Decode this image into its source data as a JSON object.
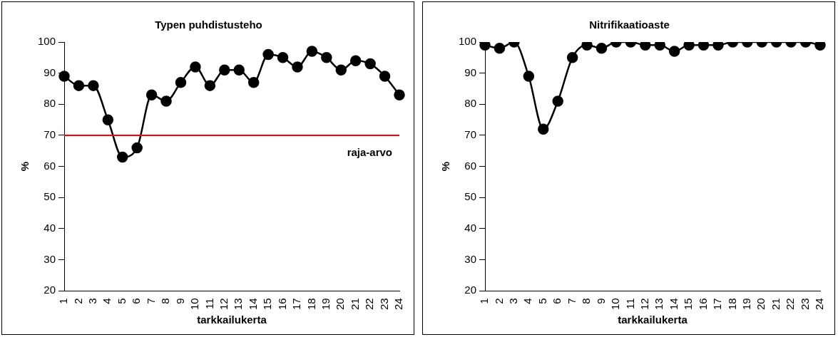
{
  "chart_data": [
    {
      "type": "line",
      "title": "Typen puhdistusteho",
      "xlabel": "tarkkailukerta",
      "ylabel": "%",
      "categories": [
        "1",
        "2",
        "3",
        "4",
        "5",
        "6",
        "7",
        "8",
        "9",
        "10",
        "11",
        "12",
        "13",
        "14",
        "15",
        "16",
        "17",
        "18",
        "19",
        "20",
        "21",
        "22",
        "23",
        "24"
      ],
      "series": [
        {
          "color": "#000000",
          "values": [
            89,
            86,
            86,
            75,
            63,
            66,
            83,
            81,
            87,
            92,
            86,
            91,
            91,
            87,
            96,
            95,
            92,
            97,
            95,
            91,
            94,
            93,
            89,
            83
          ]
        }
      ],
      "ylim": [
        20,
        100
      ],
      "yticks": [
        20,
        30,
        40,
        50,
        60,
        70,
        80,
        90,
        100
      ],
      "grid": false,
      "legend": false,
      "marker": "circle",
      "line_style": "solid",
      "ref_lines": [
        {
          "axis": "y",
          "value": 70,
          "label": "raja-arvo",
          "color": "#ff0000"
        }
      ]
    },
    {
      "type": "line",
      "title": "Nitrifikaatioaste",
      "xlabel": "tarkkailukerta",
      "ylabel": "%",
      "categories": [
        "1",
        "2",
        "3",
        "4",
        "5",
        "6",
        "7",
        "8",
        "9",
        "10",
        "11",
        "12",
        "13",
        "14",
        "15",
        "16",
        "17",
        "18",
        "19",
        "20",
        "21",
        "22",
        "23",
        "24"
      ],
      "series": [
        {
          "color": "#000000",
          "values": [
            99,
            98,
            100,
            89,
            72,
            81,
            95,
            99,
            98,
            100,
            100,
            99,
            99,
            97,
            99,
            99,
            99,
            100,
            100,
            100,
            100,
            100,
            100,
            99
          ]
        }
      ],
      "ylim": [
        20,
        100
      ],
      "yticks": [
        20,
        30,
        40,
        50,
        60,
        70,
        80,
        90,
        100
      ],
      "grid": false,
      "legend": false,
      "marker": "circle",
      "line_style": "solid"
    }
  ]
}
